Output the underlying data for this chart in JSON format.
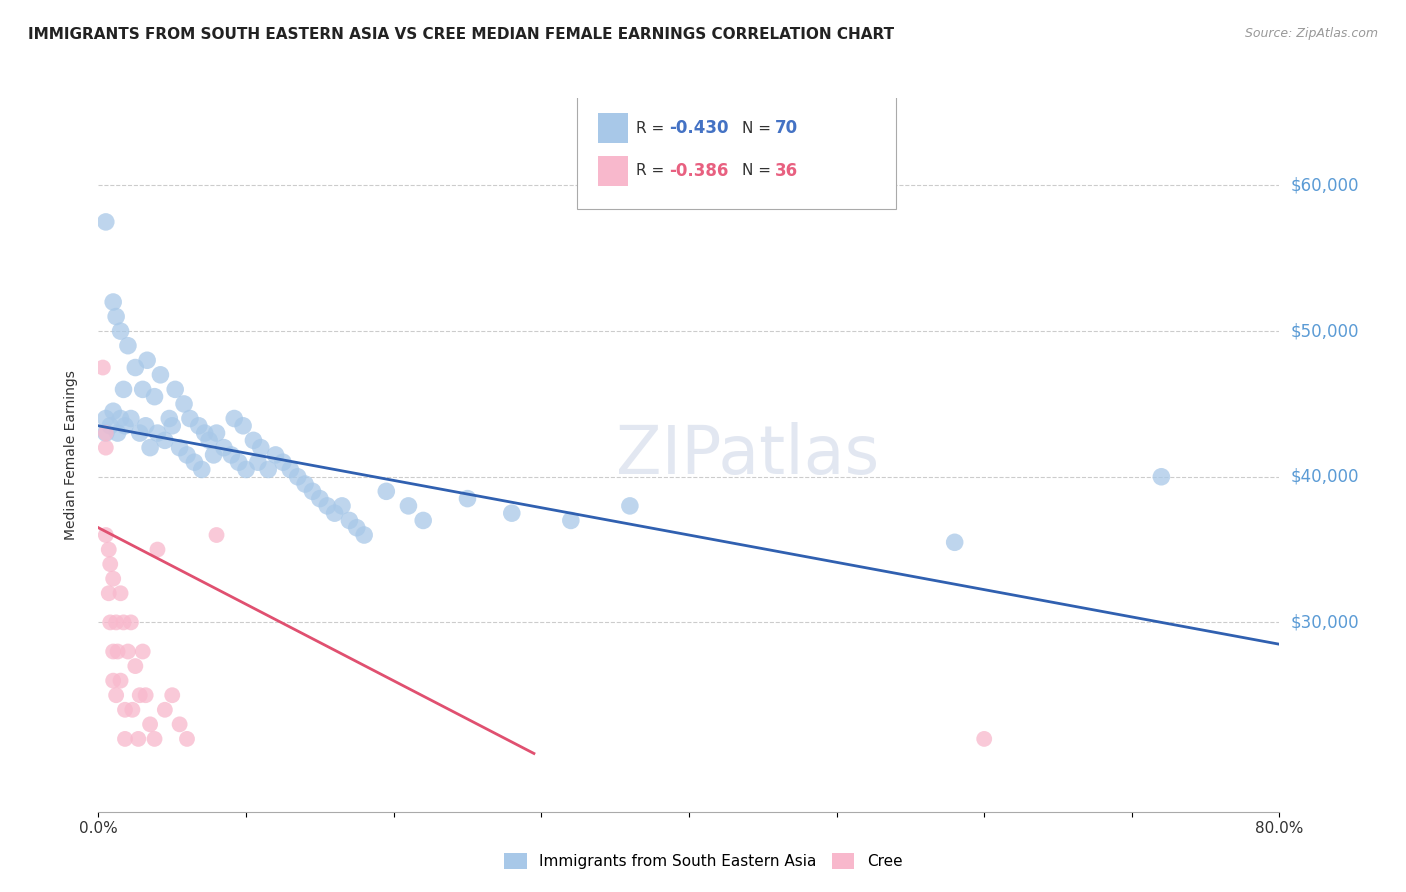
{
  "title": "IMMIGRANTS FROM SOUTH EASTERN ASIA VS CREE MEDIAN FEMALE EARNINGS CORRELATION CHART",
  "source": "Source: ZipAtlas.com",
  "ylabel": "Median Female Earnings",
  "y_tick_labels": [
    "$30,000",
    "$40,000",
    "$50,000",
    "$60,000"
  ],
  "y_tick_values": [
    30000,
    40000,
    50000,
    60000
  ],
  "ylim": [
    17000,
    66000
  ],
  "xlim": [
    0.0,
    0.8
  ],
  "legend_r_blue": "R = -0.430",
  "legend_n_blue": "N = 70",
  "legend_r_pink": "R = -0.386",
  "legend_n_pink": "N = 36",
  "legend_label_blue": "Immigrants from South Eastern Asia",
  "legend_label_pink": "Cree",
  "blue_scatter_x": [
    0.005,
    0.005,
    0.005,
    0.008,
    0.01,
    0.01,
    0.012,
    0.013,
    0.015,
    0.015,
    0.017,
    0.018,
    0.02,
    0.022,
    0.025,
    0.028,
    0.03,
    0.032,
    0.033,
    0.035,
    0.038,
    0.04,
    0.042,
    0.045,
    0.048,
    0.05,
    0.052,
    0.055,
    0.058,
    0.06,
    0.062,
    0.065,
    0.068,
    0.07,
    0.072,
    0.075,
    0.078,
    0.08,
    0.085,
    0.09,
    0.092,
    0.095,
    0.098,
    0.1,
    0.105,
    0.108,
    0.11,
    0.115,
    0.12,
    0.125,
    0.13,
    0.135,
    0.14,
    0.145,
    0.15,
    0.155,
    0.16,
    0.165,
    0.17,
    0.175,
    0.18,
    0.195,
    0.21,
    0.22,
    0.25,
    0.28,
    0.32,
    0.36,
    0.58,
    0.72
  ],
  "blue_scatter_y": [
    57500,
    43000,
    44000,
    43500,
    52000,
    44500,
    51000,
    43000,
    50000,
    44000,
    46000,
    43500,
    49000,
    44000,
    47500,
    43000,
    46000,
    43500,
    48000,
    42000,
    45500,
    43000,
    47000,
    42500,
    44000,
    43500,
    46000,
    42000,
    45000,
    41500,
    44000,
    41000,
    43500,
    40500,
    43000,
    42500,
    41500,
    43000,
    42000,
    41500,
    44000,
    41000,
    43500,
    40500,
    42500,
    41000,
    42000,
    40500,
    41500,
    41000,
    40500,
    40000,
    39500,
    39000,
    38500,
    38000,
    37500,
    38000,
    37000,
    36500,
    36000,
    39000,
    38000,
    37000,
    38500,
    37500,
    37000,
    38000,
    35500,
    40000
  ],
  "pink_scatter_x": [
    0.003,
    0.005,
    0.005,
    0.007,
    0.007,
    0.008,
    0.008,
    0.01,
    0.01,
    0.01,
    0.012,
    0.012,
    0.013,
    0.015,
    0.015,
    0.017,
    0.018,
    0.018,
    0.02,
    0.022,
    0.023,
    0.025,
    0.027,
    0.028,
    0.03,
    0.032,
    0.035,
    0.038,
    0.04,
    0.045,
    0.05,
    0.055,
    0.06,
    0.08,
    0.6,
    0.005
  ],
  "pink_scatter_y": [
    47500,
    42000,
    36000,
    35000,
    32000,
    34000,
    30000,
    33000,
    28000,
    26000,
    30000,
    25000,
    28000,
    32000,
    26000,
    30000,
    24000,
    22000,
    28000,
    30000,
    24000,
    27000,
    22000,
    25000,
    28000,
    25000,
    23000,
    22000,
    35000,
    24000,
    25000,
    23000,
    22000,
    36000,
    22000,
    43000
  ],
  "blue_line_x": [
    0.0,
    0.8
  ],
  "blue_line_y": [
    43500,
    28500
  ],
  "pink_line_x": [
    0.0,
    0.295
  ],
  "pink_line_y": [
    36500,
    21000
  ],
  "blue_color": "#a8c8e8",
  "pink_color": "#f8b8cc",
  "blue_line_color": "#3060b0",
  "pink_line_color": "#e05070",
  "blue_label_color": "#4472c4",
  "pink_label_color": "#e86080",
  "watermark": "ZIPatlas",
  "background_color": "#ffffff",
  "grid_color": "#cccccc",
  "right_ytick_color": "#5b9bd5"
}
